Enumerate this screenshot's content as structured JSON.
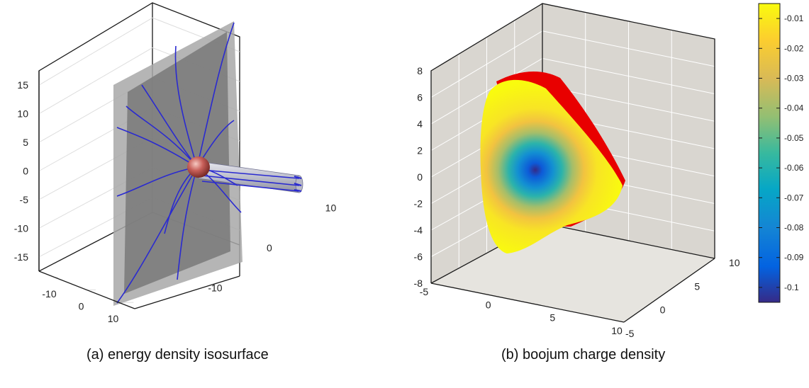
{
  "chart_data": [
    {
      "type": "surface",
      "caption": "(a) energy density isosurface",
      "z_ticks": [
        15,
        10,
        5,
        0,
        -5,
        -10,
        -15
      ],
      "x_ticks": [
        -10,
        0,
        10
      ],
      "y_ticks": [
        10,
        0,
        -10
      ],
      "zlim": [
        -17.5,
        17.5
      ],
      "grid": true,
      "colors": {
        "isosurface": "#8c8c8c",
        "field_lines": "#2a2ad0",
        "sphere": "#c8605a"
      }
    },
    {
      "type": "surface",
      "caption": "(b) boojum charge density",
      "z_ticks": [
        8,
        6,
        4,
        2,
        0,
        -2,
        -4,
        -6,
        -8
      ],
      "x_ticks": [
        -5,
        0,
        5,
        10
      ],
      "y_ticks": [
        10,
        5,
        0,
        -5
      ],
      "zlim": [
        -8,
        8
      ],
      "grid": true,
      "colorbar": {
        "ticks": [
          -0.01,
          -0.02,
          -0.03,
          -0.04,
          -0.05,
          -0.06,
          -0.07,
          -0.08,
          -0.09,
          -0.1
        ],
        "range": [
          -0.105,
          -0.005
        ],
        "colormap": "parula"
      },
      "colors": {
        "pane": "#d9d6d0",
        "edge": "#e80000"
      }
    }
  ]
}
